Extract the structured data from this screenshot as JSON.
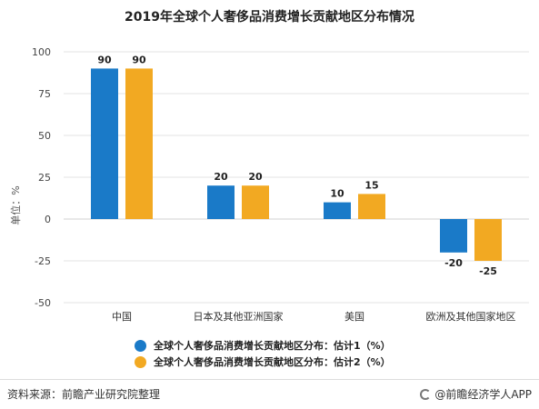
{
  "header": {
    "title": "2019年全球个人奢侈品消费增长贡献地区分布情况"
  },
  "chart_data": {
    "type": "bar",
    "title": "2019年全球个人奢侈品消费增长贡献地区分布情况",
    "ylabel": "单位：%",
    "xlabel": "",
    "ylim": [
      -50,
      100
    ],
    "yticks": [
      100,
      75,
      50,
      25,
      0,
      -25,
      -50
    ],
    "grid": true,
    "legend_position": "bottom",
    "categories": [
      "中国",
      "日本及其他亚洲国家",
      "美国",
      "欧洲及其他国家地区"
    ],
    "series": [
      {
        "name": "全球个人奢侈品消费增长贡献地区分布：估计1（%）",
        "color": "#1a7ac8",
        "values": [
          90,
          20,
          10,
          -20
        ]
      },
      {
        "name": "全球个人奢侈品消费增长贡献地区分布：估计2（%）",
        "color": "#f2a922",
        "values": [
          90,
          20,
          15,
          -25
        ]
      }
    ]
  },
  "footer": {
    "source": "资料来源：前瞻产业研究院整理",
    "brand": "@前瞻经济学人APP"
  }
}
